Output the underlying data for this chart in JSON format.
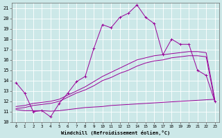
{
  "background_color": "#cce8e8",
  "grid_color": "#ffffff",
  "line_color": "#990099",
  "xlabel": "Windchill (Refroidissement éolien,°C)",
  "xlim": [
    -0.5,
    23.5
  ],
  "ylim": [
    10,
    21.5
  ],
  "xticks": [
    0,
    1,
    2,
    3,
    4,
    5,
    6,
    7,
    8,
    9,
    10,
    11,
    12,
    13,
    14,
    15,
    16,
    17,
    18,
    19,
    20,
    21,
    22,
    23
  ],
  "yticks": [
    10,
    11,
    12,
    13,
    14,
    15,
    16,
    17,
    18,
    19,
    20,
    21
  ],
  "main_line": [
    [
      0,
      13.8
    ],
    [
      1,
      12.8
    ],
    [
      2,
      11.0
    ],
    [
      3,
      11.1
    ],
    [
      4,
      10.5
    ],
    [
      5,
      11.8
    ],
    [
      6,
      12.8
    ],
    [
      7,
      13.9
    ],
    [
      8,
      14.4
    ],
    [
      9,
      17.1
    ],
    [
      10,
      19.4
    ],
    [
      11,
      19.1
    ],
    [
      12,
      20.1
    ],
    [
      13,
      20.5
    ],
    [
      14,
      21.3
    ],
    [
      15,
      20.1
    ],
    [
      16,
      19.5
    ],
    [
      17,
      16.5
    ],
    [
      18,
      18.0
    ],
    [
      19,
      17.5
    ],
    [
      20,
      17.5
    ],
    [
      21,
      15.0
    ],
    [
      22,
      14.5
    ],
    [
      23,
      12.0
    ]
  ],
  "lower_line": [
    [
      0,
      11.2
    ],
    [
      1,
      11.1
    ],
    [
      2,
      11.1
    ],
    [
      3,
      11.1
    ],
    [
      4,
      11.05
    ],
    [
      5,
      11.1
    ],
    [
      6,
      11.2
    ],
    [
      7,
      11.3
    ],
    [
      8,
      11.4
    ],
    [
      9,
      11.45
    ],
    [
      10,
      11.5
    ],
    [
      11,
      11.6
    ],
    [
      12,
      11.65
    ],
    [
      13,
      11.7
    ],
    [
      14,
      11.75
    ],
    [
      15,
      11.8
    ],
    [
      16,
      11.85
    ],
    [
      17,
      11.9
    ],
    [
      18,
      11.95
    ],
    [
      19,
      12.0
    ],
    [
      20,
      12.05
    ],
    [
      21,
      12.1
    ],
    [
      22,
      12.15
    ],
    [
      23,
      12.2
    ]
  ],
  "upper_line1": [
    [
      0,
      11.5
    ],
    [
      1,
      11.6
    ],
    [
      2,
      11.8
    ],
    [
      3,
      11.9
    ],
    [
      4,
      12.0
    ],
    [
      5,
      12.2
    ],
    [
      6,
      12.6
    ],
    [
      7,
      13.0
    ],
    [
      8,
      13.4
    ],
    [
      9,
      13.9
    ],
    [
      10,
      14.4
    ],
    [
      11,
      14.8
    ],
    [
      12,
      15.2
    ],
    [
      13,
      15.6
    ],
    [
      14,
      16.0
    ],
    [
      15,
      16.2
    ],
    [
      16,
      16.4
    ],
    [
      17,
      16.5
    ],
    [
      18,
      16.6
    ],
    [
      19,
      16.7
    ],
    [
      20,
      16.8
    ],
    [
      21,
      16.8
    ],
    [
      22,
      16.7
    ],
    [
      23,
      12.2
    ]
  ],
  "upper_line2": [
    [
      0,
      11.3
    ],
    [
      1,
      11.4
    ],
    [
      2,
      11.6
    ],
    [
      3,
      11.7
    ],
    [
      4,
      11.8
    ],
    [
      5,
      12.0
    ],
    [
      6,
      12.4
    ],
    [
      7,
      12.8
    ],
    [
      8,
      13.1
    ],
    [
      9,
      13.5
    ],
    [
      10,
      14.0
    ],
    [
      11,
      14.3
    ],
    [
      12,
      14.7
    ],
    [
      13,
      15.0
    ],
    [
      14,
      15.4
    ],
    [
      15,
      15.7
    ],
    [
      16,
      15.9
    ],
    [
      17,
      16.0
    ],
    [
      18,
      16.2
    ],
    [
      19,
      16.3
    ],
    [
      20,
      16.4
    ],
    [
      21,
      16.4
    ],
    [
      22,
      16.3
    ],
    [
      23,
      12.0
    ]
  ]
}
